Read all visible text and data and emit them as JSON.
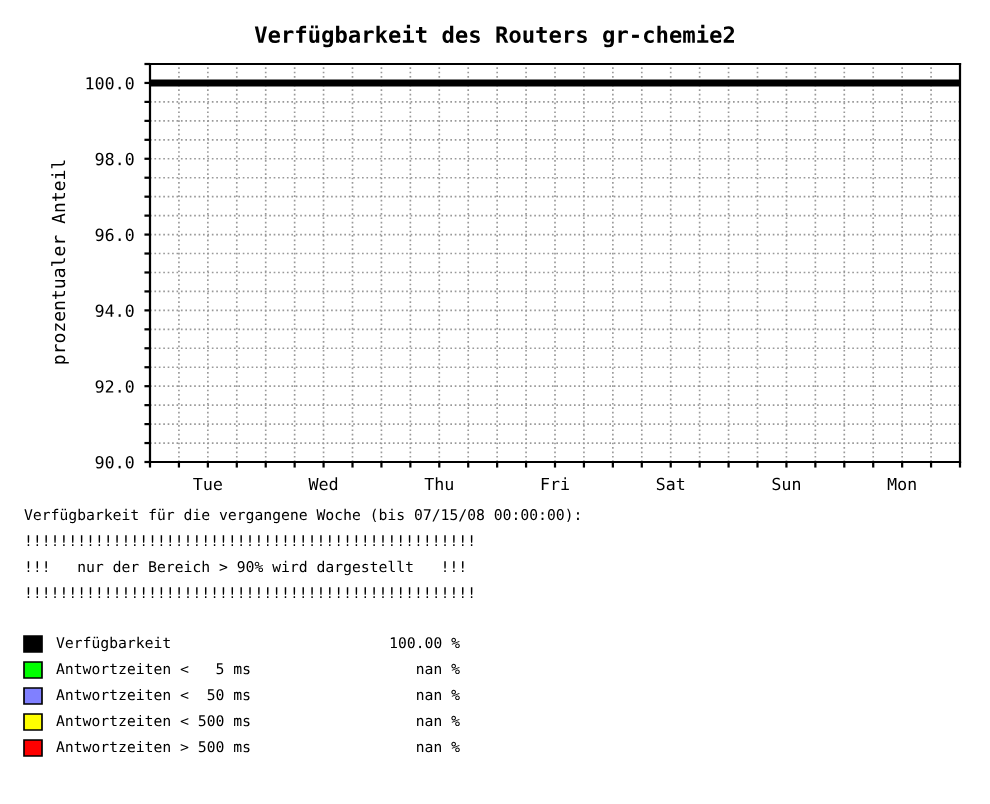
{
  "chart_data": {
    "type": "line",
    "title": "Verfügbarkeit des Routers gr-chemie2",
    "ylabel": "prozentualer Anteil",
    "categories": [
      null,
      null,
      "Tue",
      null,
      null,
      null,
      "Wed",
      null,
      null,
      null,
      "Thu",
      null,
      null,
      null,
      "Fri",
      null,
      null,
      null,
      "Sat",
      null,
      null,
      null,
      "Sun",
      null,
      null,
      null,
      "Mon",
      null,
      null
    ],
    "series": [
      {
        "name": "Verfügbarkeit",
        "color": "#000000",
        "values": [
          100.0,
          100.0,
          100.0,
          100.0,
          100.0,
          100.0,
          100.0,
          100.0,
          100.0,
          100.0,
          100.0,
          100.0,
          100.0,
          100.0,
          100.0,
          100.0,
          100.0,
          100.0,
          100.0,
          100.0,
          100.0,
          100.0,
          100.0,
          100.0,
          100.0,
          100.0,
          100.0,
          100.0,
          100.0
        ]
      },
      {
        "name": "Antwortzeiten <   5 ms",
        "color": "#00ff00",
        "values": [
          null,
          null,
          null,
          null,
          null,
          null,
          null,
          null,
          null,
          null,
          null,
          null,
          null,
          null,
          null,
          null,
          null,
          null,
          null,
          null,
          null,
          null,
          null,
          null,
          null,
          null,
          null,
          null,
          null
        ]
      },
      {
        "name": "Antwortzeiten <  50 ms",
        "color": "#8080ff",
        "values": [
          null,
          null,
          null,
          null,
          null,
          null,
          null,
          null,
          null,
          null,
          null,
          null,
          null,
          null,
          null,
          null,
          null,
          null,
          null,
          null,
          null,
          null,
          null,
          null,
          null,
          null,
          null,
          null,
          null
        ]
      },
      {
        "name": "Antwortzeiten < 500 ms",
        "color": "#ffff00",
        "values": [
          null,
          null,
          null,
          null,
          null,
          null,
          null,
          null,
          null,
          null,
          null,
          null,
          null,
          null,
          null,
          null,
          null,
          null,
          null,
          null,
          null,
          null,
          null,
          null,
          null,
          null,
          null,
          null,
          null
        ]
      },
      {
        "name": "Antwortzeiten > 500 ms",
        "color": "#ff0000",
        "values": [
          null,
          null,
          null,
          null,
          null,
          null,
          null,
          null,
          null,
          null,
          null,
          null,
          null,
          null,
          null,
          null,
          null,
          null,
          null,
          null,
          null,
          null,
          null,
          null,
          null,
          null,
          null,
          null,
          null
        ]
      }
    ],
    "ylim": [
      90,
      100.5
    ],
    "yticks": [
      {
        "value": 90,
        "label": "90.0"
      },
      {
        "value": 90.5,
        "label": null
      },
      {
        "value": 91,
        "label": null
      },
      {
        "value": 91.5,
        "label": null
      },
      {
        "value": 92,
        "label": "92.0"
      },
      {
        "value": 92.5,
        "label": null
      },
      {
        "value": 93,
        "label": null
      },
      {
        "value": 93.5,
        "label": null
      },
      {
        "value": 94,
        "label": "94.0"
      },
      {
        "value": 94.5,
        "label": null
      },
      {
        "value": 95,
        "label": null
      },
      {
        "value": 95.5,
        "label": null
      },
      {
        "value": 96,
        "label": "96.0"
      },
      {
        "value": 96.5,
        "label": null
      },
      {
        "value": 97,
        "label": null
      },
      {
        "value": 97.5,
        "label": null
      },
      {
        "value": 98,
        "label": "98.0"
      },
      {
        "value": 98.5,
        "label": null
      },
      {
        "value": 99,
        "label": null
      },
      {
        "value": 99.5,
        "label": null
      },
      {
        "value": 100,
        "label": "100.0"
      },
      {
        "value": 100.5,
        "label": null
      }
    ],
    "grid": true,
    "legend": "bottom",
    "line_style": "solid",
    "annotations": [
      "Verfügbarkeit für die vergangene Woche (bis 07/15/08 00:00:00):",
      "!!!!!!!!!!!!!!!!!!!!!!!!!!!!!!!!!!!!!!!!!!!!!!!!!!!",
      "!!!   nur der Bereich > 90% wird dargestellt   !!!",
      "!!!!!!!!!!!!!!!!!!!!!!!!!!!!!!!!!!!!!!!!!!!!!!!!!!!",
      "100.00 %",
      "nan %",
      "nan %",
      "nan %",
      "nan %"
    ]
  }
}
